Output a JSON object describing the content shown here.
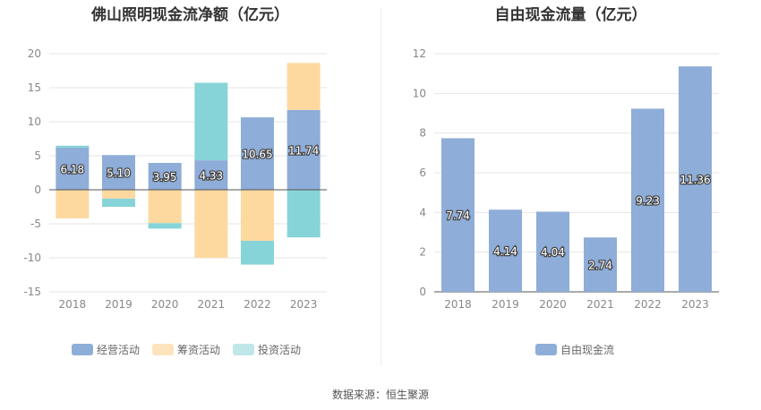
{
  "chart_data": [
    {
      "type": "bar",
      "stacked": true,
      "title": "佛山照明现金流净额（亿元）",
      "categories": [
        "2018",
        "2019",
        "2020",
        "2021",
        "2022",
        "2023"
      ],
      "ylim": [
        -15,
        20
      ],
      "yticks": [
        20,
        15,
        10,
        5,
        0,
        -5,
        -10,
        -15
      ],
      "grid": true,
      "legend_position": "bottom",
      "series": [
        {
          "name": "经营活动",
          "color": "#8eadd8",
          "values": [
            6.18,
            5.1,
            3.95,
            4.33,
            10.65,
            11.74
          ],
          "labels": [
            "6.18",
            "5.10",
            "3.95",
            "4.33",
            "10.65",
            "11.74"
          ]
        },
        {
          "name": "筹资活动",
          "color": "#fdd9a0",
          "values": [
            -4.2,
            -1.3,
            -4.9,
            -10.0,
            -7.5,
            6.9
          ]
        },
        {
          "name": "投资活动",
          "color": "#86d4d8",
          "values": [
            0.3,
            -1.2,
            -0.8,
            11.4,
            -3.5,
            -7.0
          ]
        }
      ]
    },
    {
      "type": "bar",
      "title": "自由现金流量（亿元）",
      "categories": [
        "2018",
        "2019",
        "2020",
        "2021",
        "2022",
        "2023"
      ],
      "ylim": [
        0,
        12
      ],
      "yticks": [
        12,
        10,
        8,
        6,
        4,
        2,
        0
      ],
      "grid": true,
      "legend_position": "bottom",
      "series": [
        {
          "name": "自由现金流",
          "color": "#8eadd8",
          "values": [
            7.74,
            4.14,
            4.04,
            2.74,
            9.23,
            11.36
          ],
          "labels": [
            "7.74",
            "4.14",
            "4.04",
            "2.74",
            "9.23",
            "11.36"
          ]
        }
      ]
    }
  ],
  "source": "数据来源：恒生聚源"
}
